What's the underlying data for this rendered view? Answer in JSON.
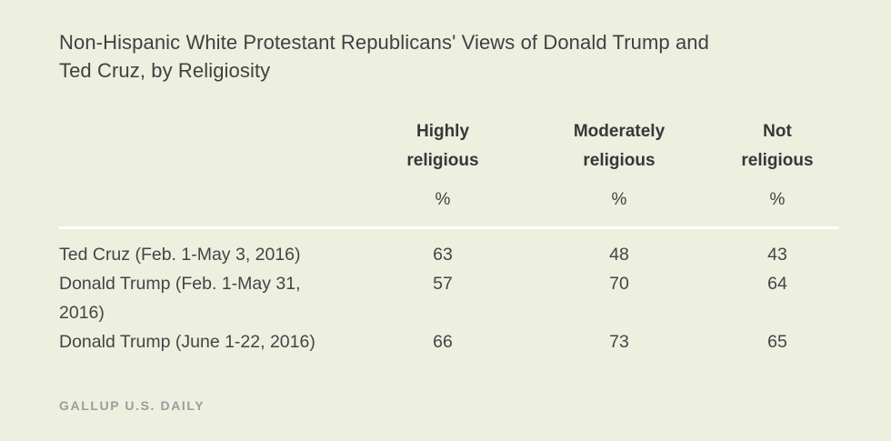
{
  "title": "Non-Hispanic White Protestant Republicans' Views of Donald Trump and\nTed Cruz, by Religiosity",
  "table": {
    "column_headers": [
      "Highly\nreligious",
      "Moderately\nreligious",
      "Not\nreligious"
    ],
    "units": [
      "%",
      "%",
      "%"
    ],
    "rows": [
      {
        "label": "Ted Cruz (Feb. 1-May 3, 2016)",
        "values": [
          "63",
          "48",
          "43"
        ]
      },
      {
        "label": "Donald Trump (Feb. 1-May 31,\n2016)",
        "values": [
          "57",
          "70",
          "64"
        ]
      },
      {
        "label": "Donald Trump (June 1-22, 2016)",
        "values": [
          "66",
          "73",
          "65"
        ]
      }
    ]
  },
  "source": "GALLUP U.S. DAILY",
  "colors": {
    "background": "#edf0de",
    "divider": "#ffffff",
    "title_text": "#3f4143",
    "header_text": "#35383b",
    "body_text": "#424547",
    "source_text": "#9b9c9e"
  },
  "chart_data": {
    "type": "table",
    "title": "Non-Hispanic White Protestant Republicans' Views of Donald Trump and Ted Cruz, by Religiosity",
    "columns": [
      "Highly religious",
      "Moderately religious",
      "Not religious"
    ],
    "unit": "%",
    "rows": [
      {
        "label": "Ted Cruz (Feb. 1-May 3, 2016)",
        "values": [
          63,
          48,
          43
        ]
      },
      {
        "label": "Donald Trump (Feb. 1-May 31, 2016)",
        "values": [
          57,
          70,
          64
        ]
      },
      {
        "label": "Donald Trump (June 1-22, 2016)",
        "values": [
          66,
          73,
          65
        ]
      }
    ],
    "source": "GALLUP U.S. DAILY",
    "layout": {
      "grid": "off",
      "header_divider": "white horizontal rule",
      "value_alignment": "center"
    }
  }
}
